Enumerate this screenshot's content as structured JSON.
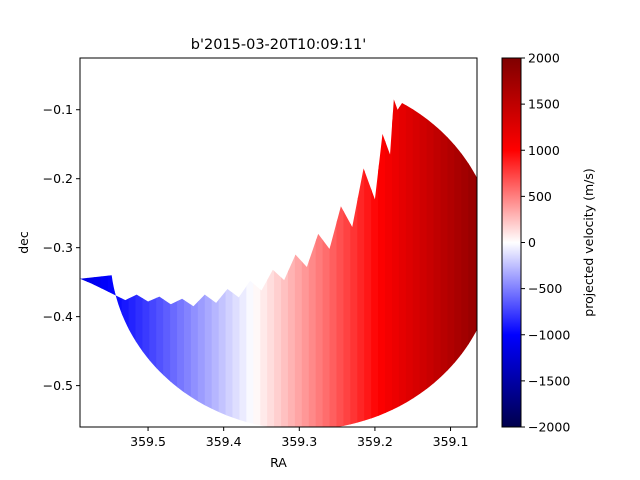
{
  "chart_data": {
    "type": "heatmap",
    "title": "b'2015-03-20T10:09:11'",
    "xlabel": "RA",
    "ylabel": "dec",
    "xlim": [
      359.59,
      359.065
    ],
    "ylim": [
      -0.56,
      -0.025
    ],
    "x_ticks": [
      359.5,
      359.4,
      359.3,
      359.2,
      359.1
    ],
    "x_tick_labels": [
      "359.5",
      "359.4",
      "359.3",
      "359.2",
      "359.1"
    ],
    "y_ticks": [
      -0.1,
      -0.2,
      -0.3,
      -0.4,
      -0.5
    ],
    "y_tick_labels": [
      "−0.1",
      "−0.2",
      "−0.3",
      "−0.4",
      "−0.5"
    ],
    "colorbar": {
      "label": "projected velocity (m/s)",
      "cmap": "seismic",
      "range": [
        -2000,
        2000
      ],
      "ticks": [
        2000,
        1500,
        1000,
        500,
        0,
        -500,
        -1000,
        -1500,
        -2000
      ],
      "tick_labels": [
        "2000",
        "1500",
        "1000",
        "500",
        "0",
        "−500",
        "−1000",
        "−1500",
        "−2000"
      ],
      "colors": [
        "#00004c",
        "#0000ff",
        "#ffffff",
        "#ff0000",
        "#7f0000"
      ]
    },
    "disk": {
      "center_ra": 359.295,
      "center_dec": -0.309,
      "radius_deg": 0.255,
      "velocity_west_limb": -1150,
      "velocity_east_limb": 2000,
      "visible_edge_dec": [
        [
          359.59,
          -0.345
        ],
        [
          359.575,
          -0.352
        ],
        [
          359.56,
          -0.36
        ],
        [
          359.545,
          -0.368
        ],
        [
          359.53,
          -0.376
        ],
        [
          359.515,
          -0.368
        ],
        [
          359.5,
          -0.378
        ],
        [
          359.485,
          -0.371
        ],
        [
          359.47,
          -0.382
        ],
        [
          359.455,
          -0.374
        ],
        [
          359.44,
          -0.385
        ],
        [
          359.425,
          -0.368
        ],
        [
          359.41,
          -0.38
        ],
        [
          359.395,
          -0.36
        ],
        [
          359.38,
          -0.372
        ],
        [
          359.365,
          -0.348
        ],
        [
          359.35,
          -0.362
        ],
        [
          359.335,
          -0.332
        ],
        [
          359.32,
          -0.347
        ],
        [
          359.305,
          -0.31
        ],
        [
          359.29,
          -0.328
        ],
        [
          359.275,
          -0.28
        ],
        [
          359.26,
          -0.302
        ],
        [
          359.245,
          -0.24
        ],
        [
          359.23,
          -0.27
        ],
        [
          359.215,
          -0.185
        ],
        [
          359.2,
          -0.23
        ],
        [
          359.19,
          -0.135
        ],
        [
          359.18,
          -0.165
        ],
        [
          359.175,
          -0.085
        ],
        [
          359.17,
          -0.1
        ]
      ]
    }
  }
}
